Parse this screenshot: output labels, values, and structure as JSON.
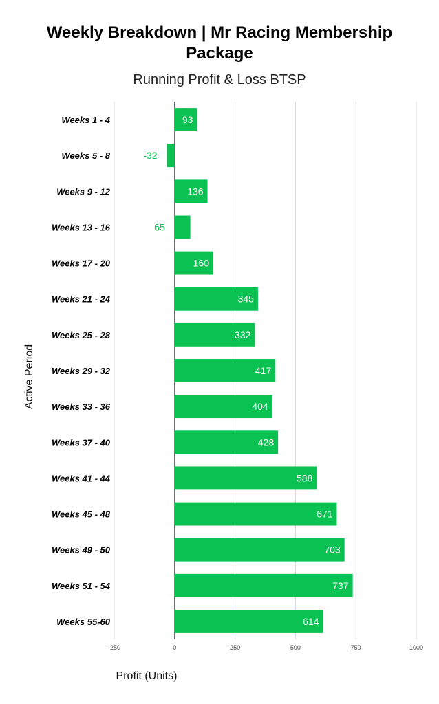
{
  "chart_data": {
    "type": "bar",
    "orientation": "horizontal",
    "title_line1": "Weekly Breakdown | Mr Racing Membership",
    "title_line2": "Package",
    "subtitle": "Running Profit & Loss BTSP",
    "xlabel": "Profit (Units)",
    "ylabel": "Active Period",
    "xlim": [
      -250,
      1000
    ],
    "xticks": [
      "-250",
      "0",
      "250",
      "500",
      "750",
      "1000"
    ],
    "xtick_values": [
      -250,
      0,
      250,
      500,
      750,
      1000
    ],
    "grid": true,
    "bar_color": "#0ac251",
    "categories": [
      "Weeks 1 - 4",
      "Weeks 5 - 8",
      "Weeks 9 - 12",
      "Weeks 13 - 16",
      "Weeks 17 - 20",
      "Weeks 21 - 24",
      "Weeks 25 - 28",
      "Weeks 29 - 32",
      "Weeks 33 - 36",
      "Weeks 37 - 40",
      "Weeks 41 - 44",
      "Weeks 45 - 48",
      "Weeks 49 - 50",
      "Weeks 51 - 54",
      "Weeks 55-60"
    ],
    "values": [
      93,
      -32,
      136,
      65,
      160,
      345,
      332,
      417,
      404,
      428,
      588,
      671,
      703,
      737,
      614
    ],
    "data_labels": [
      "93",
      "-32",
      "136",
      "65",
      "160",
      "345",
      "332",
      "417",
      "404",
      "428",
      "588",
      "671",
      "703",
      "737",
      "614"
    ]
  }
}
